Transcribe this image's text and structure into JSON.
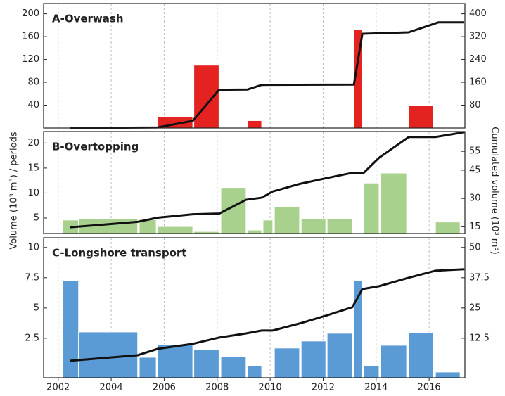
{
  "ylabel": "Volume (10³ m³) / periods",
  "y2label": "Cumulated volume (10³ m³)",
  "xlim": [
    2001.45,
    2017.35
  ],
  "xticks": [
    2002,
    2004,
    2006,
    2008,
    2010,
    2012,
    2014,
    2016
  ],
  "chart_data": [
    {
      "type": "bar_line",
      "title": "A-Overwash",
      "color": "#e42320",
      "x_start": [
        2005.75,
        2007.12,
        2009.15,
        2013.16,
        2014.2,
        2015.22
      ],
      "x_end": [
        2007.08,
        2008.07,
        2009.68,
        2013.48,
        2014.5,
        2016.15
      ],
      "values": [
        20,
        110,
        13,
        173,
        1,
        40
      ],
      "ylim": [
        0,
        218
      ],
      "yticks": [
        40,
        80,
        120,
        160,
        200
      ],
      "y2lim": [
        0,
        436
      ],
      "y2ticks": [
        80,
        160,
        240,
        320,
        400
      ],
      "line": {
        "x": [
          2002.45,
          2005.75,
          2007.08,
          2008.07,
          2009.15,
          2009.68,
          2013.16,
          2013.48,
          2015.22,
          2016.35,
          2017.3
        ],
        "values": [
          0,
          2,
          25,
          134,
          135,
          151,
          152,
          330,
          335,
          370,
          370
        ],
        "axis": "y2",
        "color": "#111111"
      }
    },
    {
      "type": "bar_line",
      "title": "B-Overtopping",
      "color": "#a9d18e",
      "x_start": [
        2002.16,
        2002.77,
        2005.06,
        2005.75,
        2007.12,
        2008.14,
        2009.15,
        2009.73,
        2010.16,
        2011.17,
        2012.15,
        2013.53,
        2014.17,
        2016.24
      ],
      "x_end": [
        2002.77,
        2005.0,
        2005.7,
        2007.08,
        2008.07,
        2009.09,
        2009.68,
        2010.1,
        2011.11,
        2012.1,
        2013.1,
        2014.11,
        2015.15,
        2017.17
      ],
      "values": [
        4.6,
        4.9,
        4.7,
        3.3,
        2.3,
        11.1,
        2.6,
        4.6,
        7.3,
        4.9,
        4.9,
        12.0,
        14.0,
        4.2
      ],
      "ylim": [
        1.9,
        22.3
      ],
      "yticks": [
        5,
        10,
        15,
        20
      ],
      "y2lim": [
        11.4,
        65.5
      ],
      "y2ticks": [
        15,
        30,
        45,
        55
      ],
      "line": {
        "x": [
          2002.45,
          2005.0,
          2005.75,
          2007.08,
          2008.08,
          2009.09,
          2009.68,
          2010.1,
          2011.11,
          2012.1,
          2013.1,
          2013.53,
          2014.11,
          2015.23,
          2016.24,
          2017.33
        ],
        "values": [
          14.7,
          17.6,
          19.8,
          21.6,
          22,
          29.3,
          30.4,
          33.7,
          37.7,
          40.7,
          43.6,
          43.6,
          51.6,
          62.6,
          62.6,
          65.2
        ],
        "axis": "y2",
        "color": "#111111"
      }
    },
    {
      "type": "bar_line",
      "title": "C-Longshore transport",
      "color": "#5b9bd5",
      "x_start": [
        2002.16,
        2002.77,
        2005.06,
        2005.75,
        2007.12,
        2008.14,
        2009.15,
        2010.16,
        2011.17,
        2012.15,
        2013.16,
        2013.53,
        2014.17,
        2015.22,
        2016.24
      ],
      "x_end": [
        2002.77,
        2005.0,
        2005.7,
        2007.08,
        2008.07,
        2009.09,
        2009.68,
        2011.11,
        2012.1,
        2013.1,
        2013.48,
        2014.11,
        2015.15,
        2016.15,
        2017.17
      ],
      "values": [
        7.27,
        3.02,
        0.93,
        1.98,
        1.57,
        0.99,
        0.23,
        1.69,
        2.27,
        2.91,
        7.27,
        0.23,
        1.92,
        2.97,
        -0.29
      ],
      "ylim": [
        -0.76,
        10.8
      ],
      "yticks": [
        2.5,
        5,
        7.5,
        10
      ],
      "y2lim": [
        -3.8,
        54
      ],
      "y2ticks": [
        12.5,
        25,
        37.5,
        50
      ],
      "line": {
        "x": [
          2002.45,
          2005.0,
          2005.75,
          2007.08,
          2008.08,
          2009.09,
          2009.68,
          2010.1,
          2011.11,
          2012.1,
          2013.1,
          2013.48,
          2014.11,
          2015.23,
          2016.24,
          2017.33
        ],
        "values": [
          3.2,
          5.5,
          8.1,
          10.2,
          12.8,
          14.5,
          15.7,
          15.7,
          18.6,
          21.8,
          25.3,
          32.8,
          34,
          37.5,
          40.4,
          41
        ],
        "axis": "y2",
        "color": "#111111"
      }
    }
  ]
}
